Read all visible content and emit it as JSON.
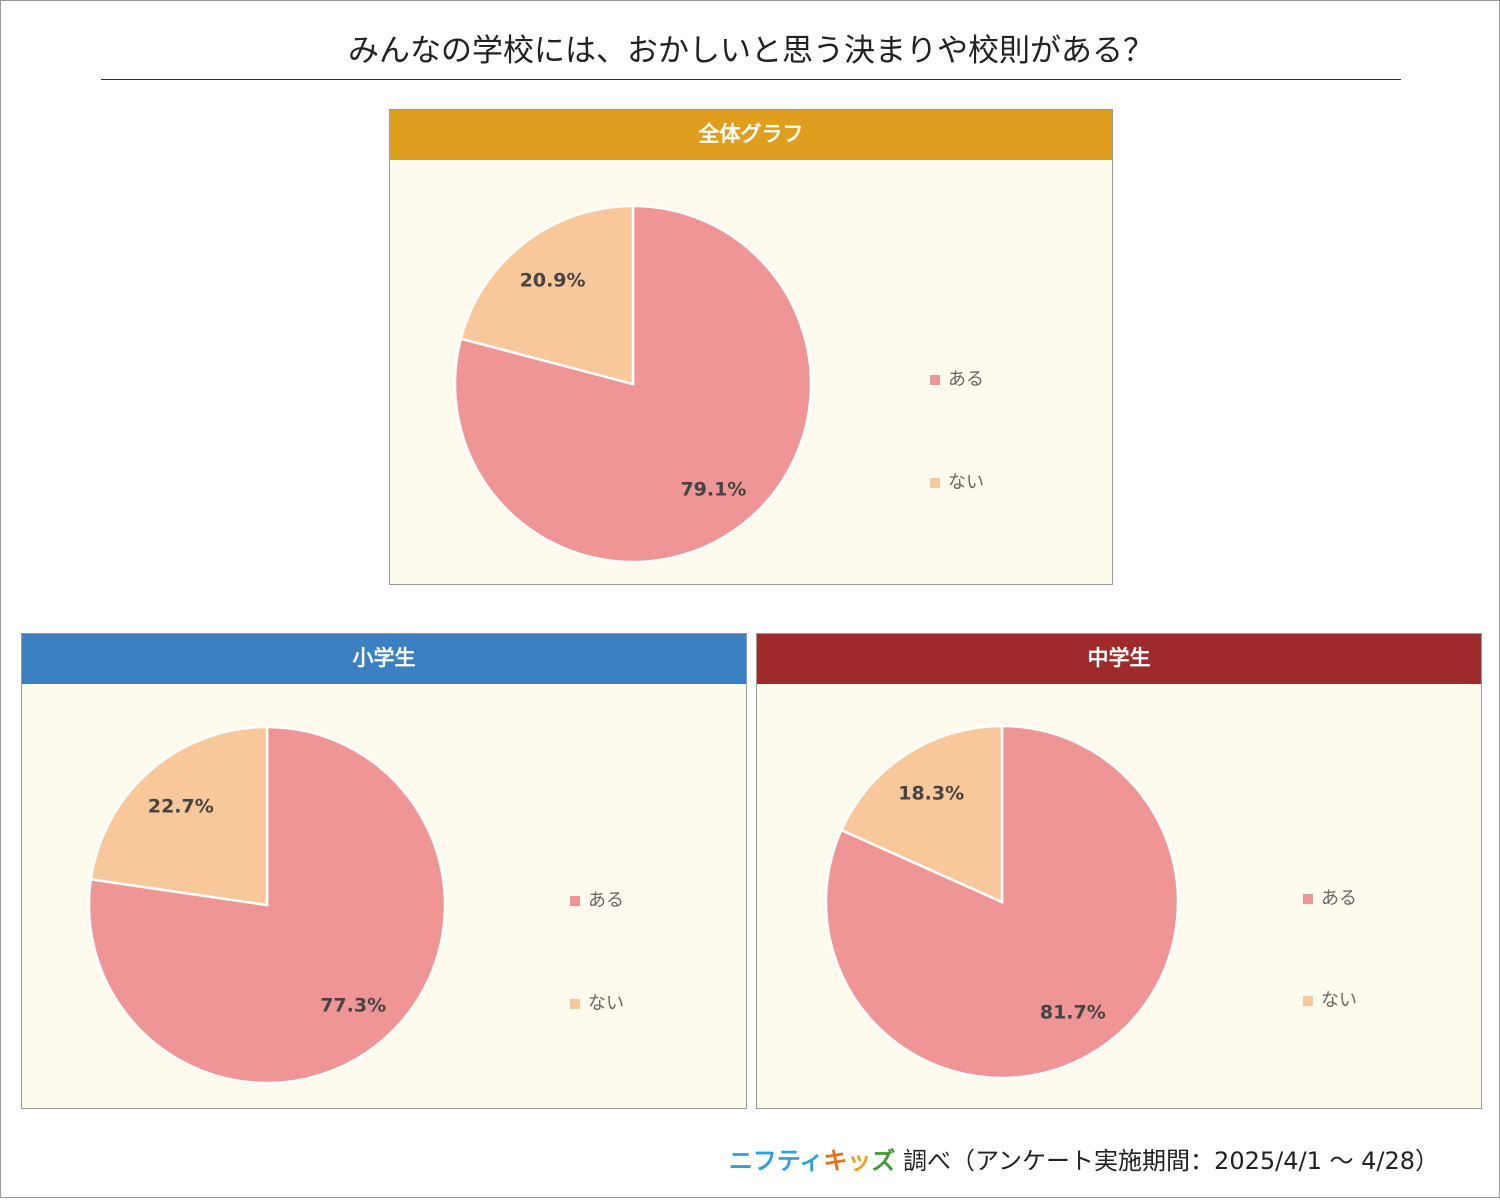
{
  "title": "みんなの学校には、おかしいと思う決まりや校則がある？",
  "chart_data": [
    {
      "type": "pie",
      "title": "全体グラフ",
      "header_color": "#e09e1e",
      "categories": [
        "ある",
        "ない"
      ],
      "values": [
        79.1,
        20.9
      ],
      "labels": [
        "79.1%",
        "20.9%"
      ],
      "colors": [
        "#f09595",
        "#f8c79a"
      ],
      "legend": [
        "ある",
        "ない"
      ],
      "legend_position": "right"
    },
    {
      "type": "pie",
      "title": "小学生",
      "header_color": "#3a80c3",
      "categories": [
        "ある",
        "ない"
      ],
      "values": [
        77.3,
        22.7
      ],
      "labels": [
        "77.3%",
        "22.7%"
      ],
      "colors": [
        "#f09595",
        "#f8c79a"
      ],
      "legend": [
        "ある",
        "ない"
      ],
      "legend_position": "right"
    },
    {
      "type": "pie",
      "title": "中学生",
      "header_color": "#9e2a2b",
      "categories": [
        "ある",
        "ない"
      ],
      "values": [
        81.7,
        18.3
      ],
      "labels": [
        "81.7%",
        "18.3%"
      ],
      "colors": [
        "#f09595",
        "#f8c79a"
      ],
      "legend": [
        "ある",
        "ない"
      ],
      "legend_position": "right"
    }
  ],
  "footer": {
    "logo_part1": "ニフティ",
    "logo_part2a": "キ",
    "logo_part2b": "ッ",
    "logo_part2c": "ズ",
    "text": "調べ（アンケート実施期間：2025/4/1 ～ 4/28）"
  }
}
